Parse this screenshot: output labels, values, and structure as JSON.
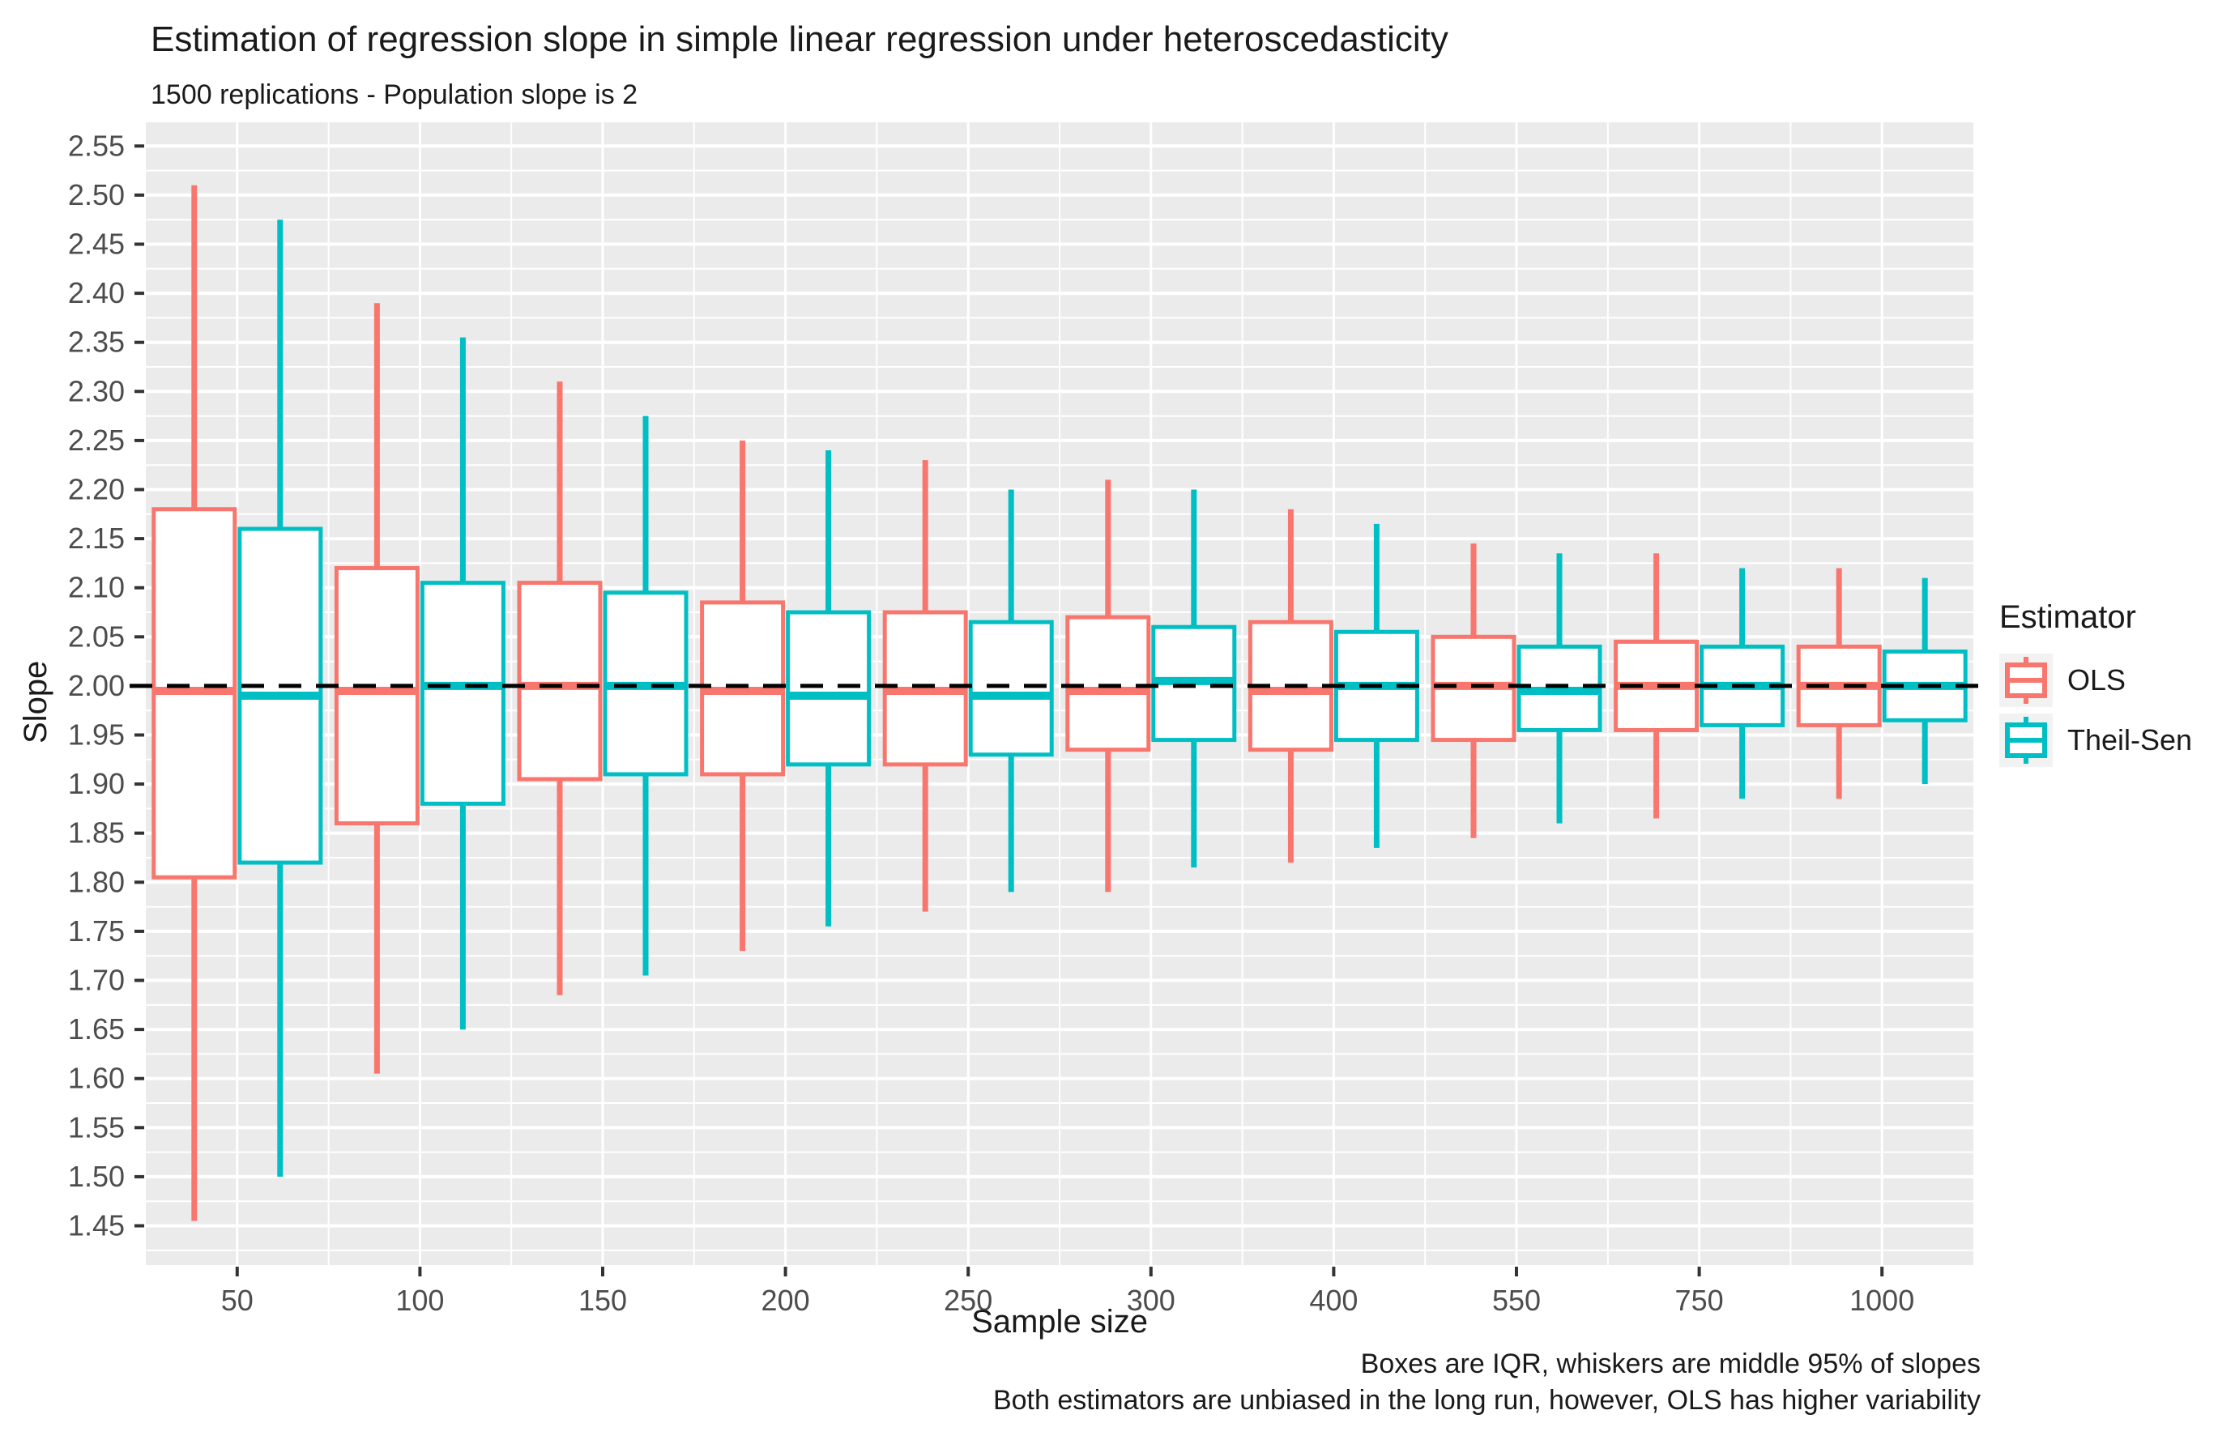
{
  "title": "Estimation of regression slope in simple linear regression under heteroscedasticity",
  "subtitle": "1500 replications - Population slope is 2",
  "caption": {
    "line1": "Boxes are IQR, whiskers are middle 95% of slopes",
    "line2": "Both estimators are unbiased in the long run, however, OLS has higher variability"
  },
  "axes": {
    "x": {
      "label": "Sample size",
      "ticks": [
        "50",
        "100",
        "150",
        "200",
        "250",
        "300",
        "400",
        "550",
        "750",
        "1000"
      ]
    },
    "y": {
      "label": "Slope",
      "ticks": [
        "2.55",
        "2.50",
        "2.45",
        "2.40",
        "2.35",
        "2.30",
        "2.25",
        "2.20",
        "2.15",
        "2.10",
        "2.05",
        "2.00",
        "1.95",
        "1.90",
        "1.85",
        "1.80",
        "1.75",
        "1.70",
        "1.65",
        "1.60",
        "1.55",
        "1.50",
        "1.45"
      ]
    }
  },
  "legend": {
    "title": "Estimator",
    "items": [
      {
        "label": "OLS",
        "color": "#F8766D"
      },
      {
        "label": "Theil-Sen",
        "color": "#00BFC4"
      }
    ]
  },
  "colors": {
    "panel_bg": "#EBEBEB",
    "grid": "#FFFFFF",
    "axis_text": "#4D4D4D",
    "tick_mark": "#333333",
    "reference_line": "#000000",
    "legend_key_bg": "#F2F2F2",
    "box_fill": "#FFFFFF"
  },
  "chart_data": {
    "type": "boxplot",
    "title": "Estimation of regression slope in simple linear regression under heteroscedasticity",
    "subtitle": "1500 replications - Population slope is 2",
    "xlabel": "Sample size",
    "ylabel": "Slope",
    "categories": [
      50,
      100,
      150,
      200,
      250,
      300,
      400,
      550,
      750,
      1000
    ],
    "ylim": [
      1.41,
      2.575
    ],
    "ytick_step": 0.05,
    "ytick_range": [
      1.45,
      2.55
    ],
    "grid": true,
    "legend_position": "right",
    "reference_line_y": 2,
    "series": [
      {
        "name": "OLS",
        "color": "#F8766D",
        "boxes": [
          {
            "low": 1.455,
            "q1": 1.805,
            "median": 1.995,
            "q3": 2.18,
            "high": 2.51
          },
          {
            "low": 1.605,
            "q1": 1.86,
            "median": 1.995,
            "q3": 2.12,
            "high": 2.39
          },
          {
            "low": 1.685,
            "q1": 1.905,
            "median": 2.0,
            "q3": 2.105,
            "high": 2.31
          },
          {
            "low": 1.73,
            "q1": 1.91,
            "median": 1.995,
            "q3": 2.085,
            "high": 2.25
          },
          {
            "low": 1.77,
            "q1": 1.92,
            "median": 1.995,
            "q3": 2.075,
            "high": 2.23
          },
          {
            "low": 1.79,
            "q1": 1.935,
            "median": 1.995,
            "q3": 2.07,
            "high": 2.21
          },
          {
            "low": 1.82,
            "q1": 1.935,
            "median": 1.995,
            "q3": 2.065,
            "high": 2.18
          },
          {
            "low": 1.845,
            "q1": 1.945,
            "median": 2.0,
            "q3": 2.05,
            "high": 2.145
          },
          {
            "low": 1.865,
            "q1": 1.955,
            "median": 2.0,
            "q3": 2.045,
            "high": 2.135
          },
          {
            "low": 1.885,
            "q1": 1.96,
            "median": 2.0,
            "q3": 2.04,
            "high": 2.12
          }
        ]
      },
      {
        "name": "Theil-Sen",
        "color": "#00BFC4",
        "boxes": [
          {
            "low": 1.5,
            "q1": 1.82,
            "median": 1.99,
            "q3": 2.16,
            "high": 2.475
          },
          {
            "low": 1.65,
            "q1": 1.88,
            "median": 2.0,
            "q3": 2.105,
            "high": 2.355
          },
          {
            "low": 1.705,
            "q1": 1.91,
            "median": 2.0,
            "q3": 2.095,
            "high": 2.275
          },
          {
            "low": 1.755,
            "q1": 1.92,
            "median": 1.99,
            "q3": 2.075,
            "high": 2.24
          },
          {
            "low": 1.79,
            "q1": 1.93,
            "median": 1.99,
            "q3": 2.065,
            "high": 2.2
          },
          {
            "low": 1.815,
            "q1": 1.945,
            "median": 2.005,
            "q3": 2.06,
            "high": 2.2
          },
          {
            "low": 1.835,
            "q1": 1.945,
            "median": 2.0,
            "q3": 2.055,
            "high": 2.165
          },
          {
            "low": 1.86,
            "q1": 1.955,
            "median": 1.995,
            "q3": 2.04,
            "high": 2.135
          },
          {
            "low": 1.885,
            "q1": 1.96,
            "median": 2.0,
            "q3": 2.04,
            "high": 2.12
          },
          {
            "low": 1.9,
            "q1": 1.965,
            "median": 2.0,
            "q3": 2.035,
            "high": 2.11
          }
        ]
      }
    ]
  }
}
